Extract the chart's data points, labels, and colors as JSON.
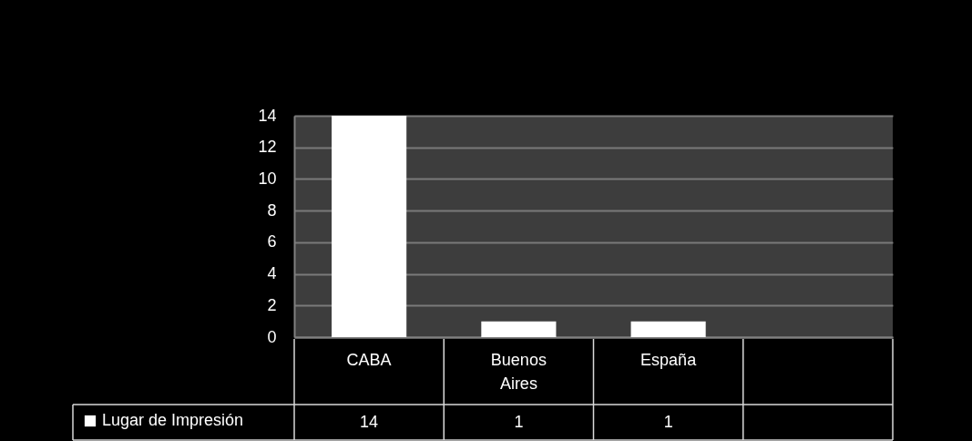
{
  "chart_data": {
    "type": "bar",
    "categories": [
      "CABA",
      "Buenos Aires",
      "España",
      null
    ],
    "series": [
      {
        "name": "Lugar de Impresión",
        "color": "#ffffff",
        "values": [
          14,
          1,
          1,
          null
        ]
      }
    ],
    "ylim": [
      0,
      14
    ],
    "yticks": [
      0,
      2,
      4,
      6,
      8,
      10,
      12,
      14
    ],
    "grid": "y",
    "legend": "bottom left",
    "data_labels": true
  }
}
